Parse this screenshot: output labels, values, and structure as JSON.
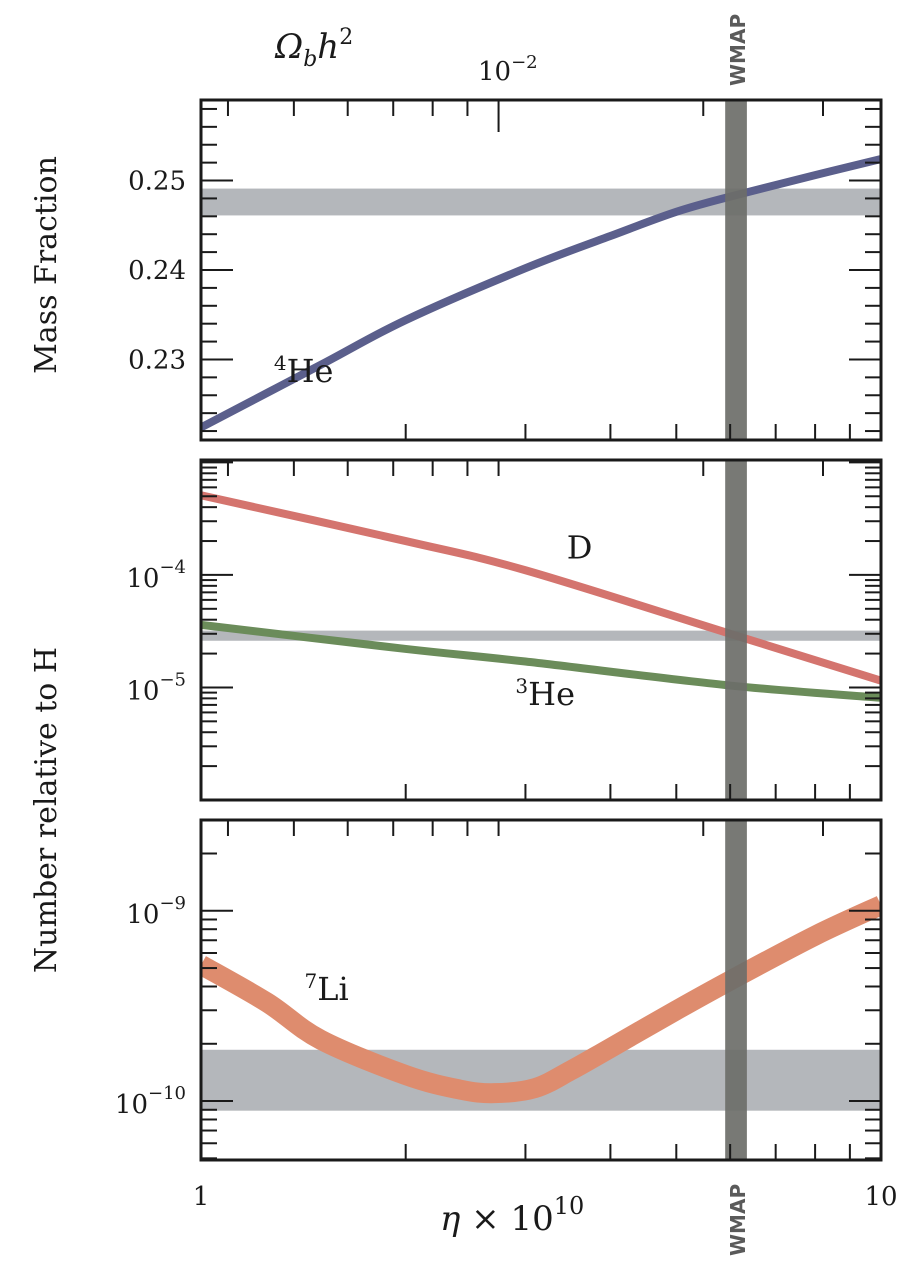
{
  "figure": {
    "top_axis_label": "Ω_b h²",
    "top_axis_tick_label": "10⁻²",
    "x_axis_label": "η × 10¹⁰",
    "x_tick_labels": [
      "1",
      "10"
    ],
    "left_label_top": "Mass Fraction",
    "left_label_bottom": "Number relative to H",
    "wmap_label": "WMAP"
  },
  "colors": {
    "he4": "#5b5f8c",
    "d": "#d4746e",
    "he3": "#6b8c5a",
    "li7": "#de8c6e",
    "obs_band": "#b4b7bb",
    "wmap_band": "#6d6e69",
    "axis": "#1a1a1a"
  },
  "chart_data": [
    {
      "type": "line",
      "title": "He-4 mass fraction",
      "xlabel": "η × 10¹⁰",
      "ylabel": "Mass Fraction",
      "xscale": "log",
      "xlim": [
        1,
        10
      ],
      "ylim": [
        0.221,
        0.259
      ],
      "yticks": [
        0.23,
        0.24,
        0.25
      ],
      "ytick_labels": [
        "0.23",
        "0.24",
        "0.25"
      ],
      "series": [
        {
          "name": "⁴He",
          "label_sup": "4",
          "label_base": "He",
          "x": [
            1,
            1.5,
            2,
            3,
            4,
            5,
            6,
            8,
            10
          ],
          "y": [
            0.2224,
            0.2294,
            0.2344,
            0.2402,
            0.2438,
            0.2465,
            0.2482,
            0.2506,
            0.2524
          ]
        }
      ],
      "observed_band": [
        0.2461,
        0.2491
      ],
      "wmap_band_x": [
        5.9,
        6.35
      ],
      "label_pos": {
        "x": 1.28,
        "y": 0.2275
      }
    },
    {
      "type": "line",
      "title": "D and He-3 relative to H",
      "ylabel": "Number relative to H",
      "xscale": "log",
      "yscale": "log",
      "xlim": [
        1,
        10
      ],
      "ylim": [
        1e-06,
        0.00105
      ],
      "yticks": [
        0.0001,
        1e-05
      ],
      "ytick_labels": [
        [
          "10",
          "−4"
        ],
        [
          "10",
          "−5"
        ]
      ],
      "series": [
        {
          "name": "D",
          "label_sup": "",
          "label_base": "D",
          "x": [
            1,
            2,
            3,
            6,
            10
          ],
          "y": [
            0.00051,
            0.0002,
            0.00011,
            3e-05,
            1.15e-05
          ]
        },
        {
          "name": "³He",
          "label_sup": "3",
          "label_base": "He",
          "x": [
            1,
            2,
            3,
            6,
            10
          ],
          "y": [
            3.6e-05,
            2.2e-05,
            1.7e-05,
            1.04e-05,
            8.1e-06
          ]
        }
      ],
      "observed_band": [
        2.6e-05,
        3.2e-05
      ],
      "label_pos": [
        {
          "x": 3.45,
          "y": 0.00014
        },
        {
          "x": 2.9,
          "y": 7e-06
        }
      ]
    },
    {
      "type": "line",
      "title": "Li-7 relative to H",
      "ylabel": "Number relative to H",
      "xscale": "log",
      "yscale": "log",
      "xlim": [
        1,
        10
      ],
      "ylim": [
        4.9e-11,
        3e-09
      ],
      "yticks": [
        1e-09,
        1e-10
      ],
      "ytick_labels": [
        [
          "10",
          "−9"
        ],
        [
          "10",
          "−10"
        ]
      ],
      "series": [
        {
          "name": "⁷Li",
          "label_sup": "7",
          "label_base": "Li",
          "x": [
            1,
            1.25,
            1.5,
            2,
            2.4,
            2.7,
            3.1,
            3.5,
            4,
            5,
            6,
            8,
            10
          ],
          "y": [
            5.2e-10,
            3.3e-10,
            2.1e-10,
            1.37e-10,
            1.15e-10,
            1.1e-10,
            1.17e-10,
            1.45e-10,
            1.9e-10,
            3e-10,
            4.3e-10,
            7.4e-10,
            1.07e-09
          ]
        }
      ],
      "observed_band": [
        8.9e-11,
        1.86e-10
      ],
      "label_pos": {
        "x": 1.42,
        "y": 3.4e-10
      }
    }
  ]
}
